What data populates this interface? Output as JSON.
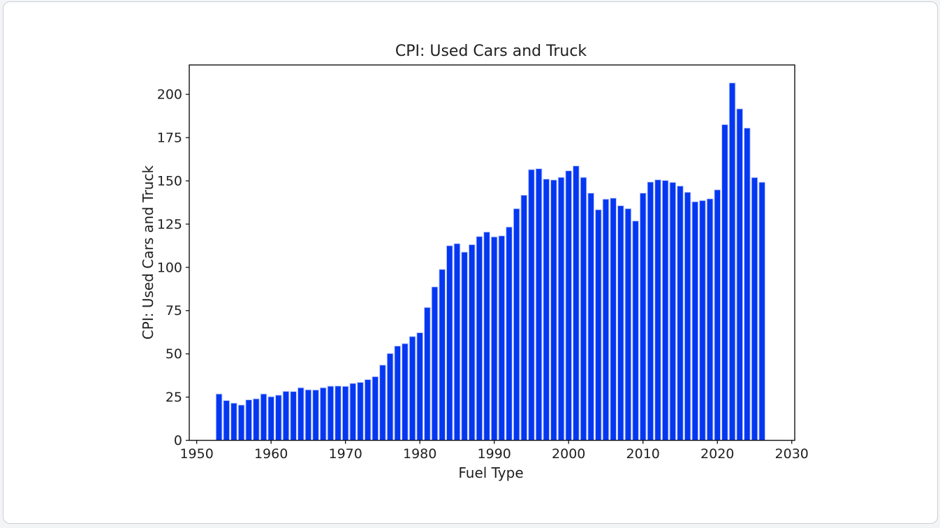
{
  "page": {
    "background_color": "#f3f4f6",
    "card_background": "#ffffff",
    "card_border_color": "#ccd0d5"
  },
  "chart_data": {
    "type": "bar",
    "title": "CPI: Used Cars and Truck",
    "xlabel": "Fuel Type",
    "ylabel": "CPI: Used Cars and Truck",
    "categories": [
      1953,
      1954,
      1955,
      1956,
      1957,
      1958,
      1959,
      1960,
      1961,
      1962,
      1963,
      1964,
      1965,
      1966,
      1967,
      1968,
      1969,
      1970,
      1971,
      1972,
      1973,
      1974,
      1975,
      1976,
      1977,
      1978,
      1979,
      1980,
      1981,
      1982,
      1983,
      1984,
      1985,
      1986,
      1987,
      1988,
      1989,
      1990,
      1991,
      1992,
      1993,
      1994,
      1995,
      1996,
      1997,
      1998,
      1999,
      2000,
      2001,
      2002,
      2003,
      2004,
      2005,
      2006,
      2007,
      2008,
      2009,
      2010,
      2011,
      2012,
      2013,
      2014,
      2015,
      2016,
      2017,
      2018,
      2019,
      2020,
      2021,
      2022,
      2023,
      2024,
      2025,
      2026
    ],
    "values": [
      26.8,
      23.0,
      21.5,
      20.4,
      23.4,
      24.0,
      26.8,
      25.2,
      26.1,
      28.3,
      28.2,
      30.4,
      29.2,
      29.1,
      30.4,
      31.3,
      31.4,
      31.2,
      32.9,
      33.5,
      35.1,
      36.8,
      43.5,
      50.2,
      54.5,
      55.9,
      60.0,
      62.2,
      76.8,
      88.7,
      98.8,
      112.5,
      113.7,
      108.8,
      113.1,
      117.8,
      120.4,
      117.6,
      118.2,
      123.3,
      133.9,
      141.7,
      156.5,
      157.0,
      151.0,
      150.5,
      152.0,
      155.8,
      158.6,
      152.0,
      142.9,
      133.3,
      139.4,
      140.0,
      135.6,
      133.9,
      126.8,
      142.9,
      149.3,
      150.6,
      150.2,
      149.1,
      147.0,
      143.4,
      137.9,
      138.6,
      139.6,
      144.8,
      182.5,
      206.6,
      191.6,
      180.5,
      151.9,
      149.2
    ],
    "xticks": [
      1950,
      1960,
      1970,
      1980,
      1990,
      2000,
      2010,
      2020,
      2030
    ],
    "yticks": [
      0,
      25,
      50,
      75,
      100,
      125,
      150,
      175,
      200
    ],
    "xlim": [
      1949.0,
      2030.4
    ],
    "ylim": [
      0,
      217
    ],
    "bar_width_years": 0.8,
    "bar_color": "#0337f2",
    "bar_edge_color": "#b7c3fa",
    "axis_color": "#111111",
    "text_color": "#1f1f1f",
    "grid": false,
    "legend_position": "none"
  }
}
